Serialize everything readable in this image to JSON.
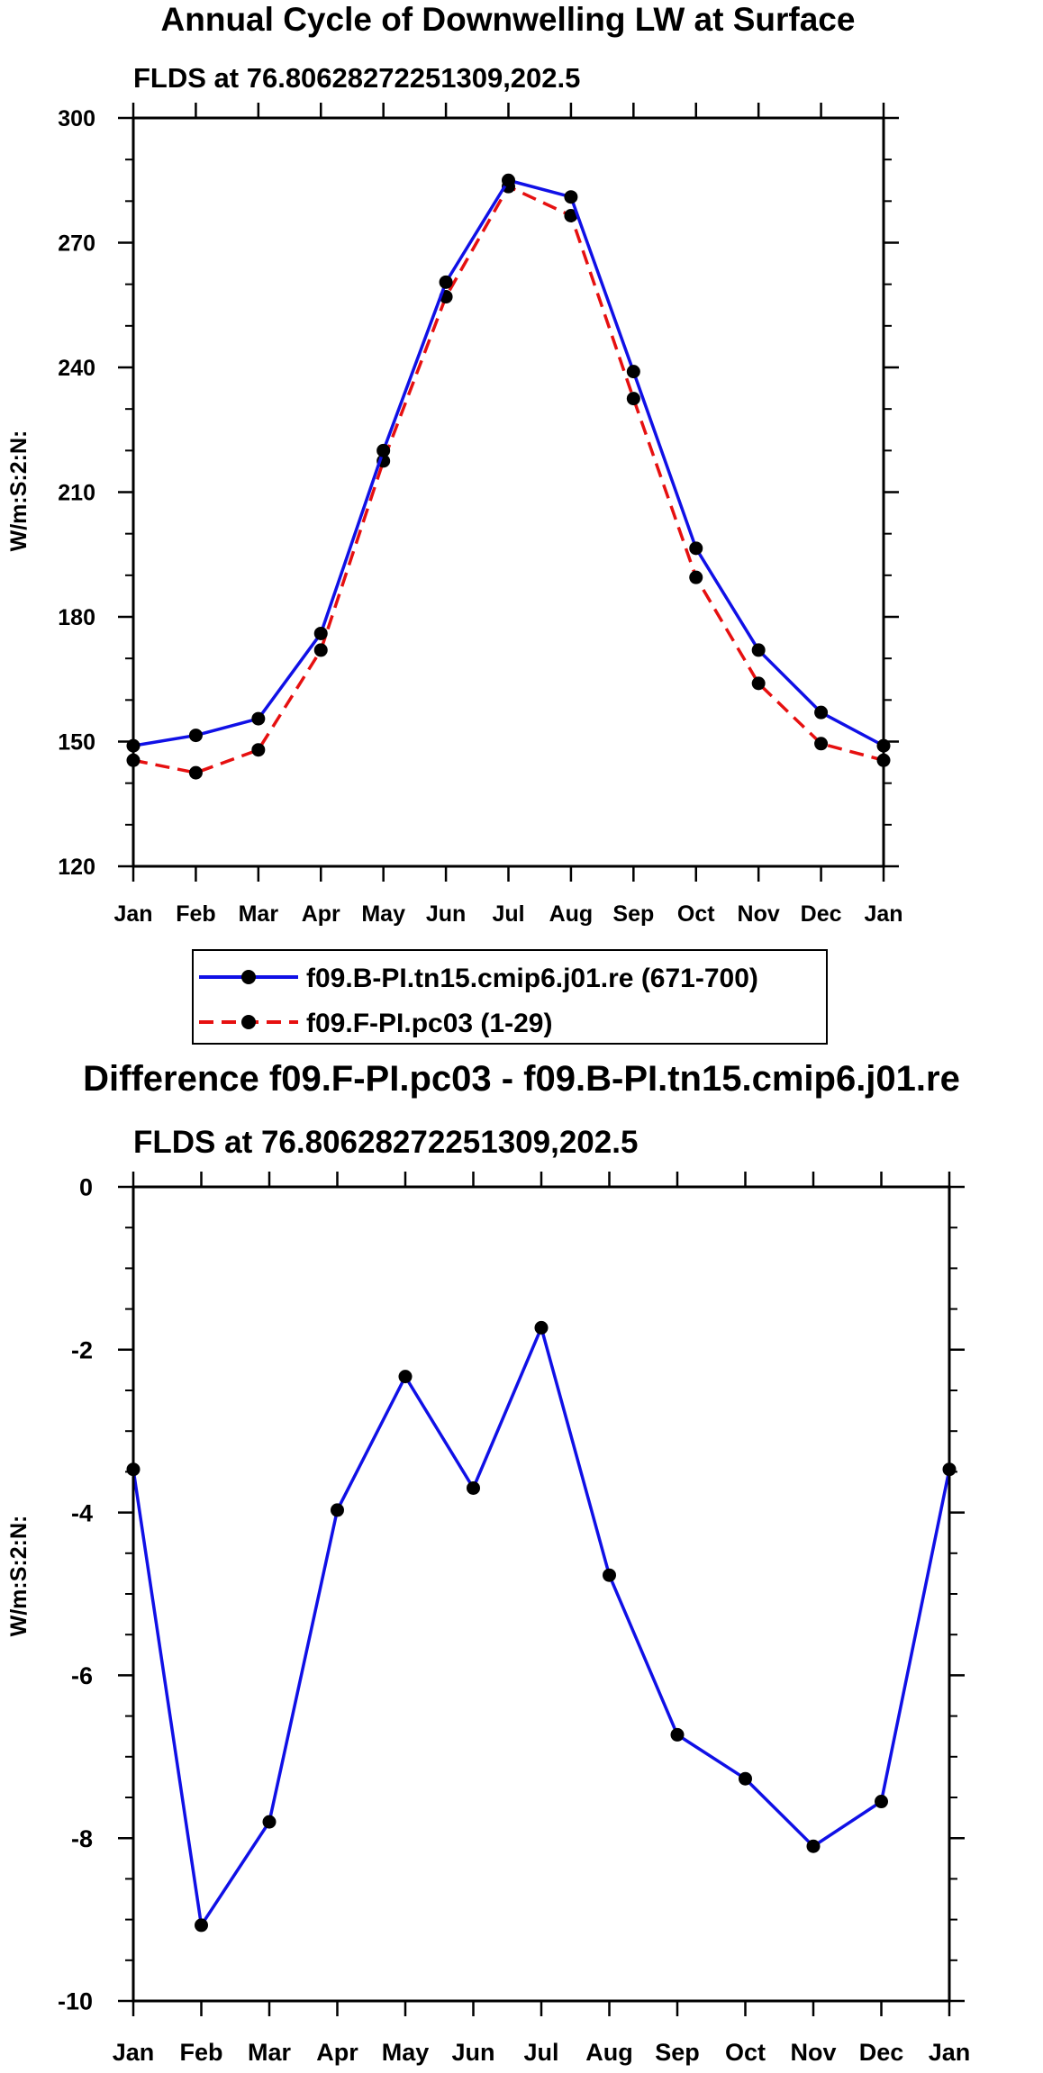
{
  "chart_data": [
    {
      "type": "line",
      "title": "Annual Cycle of Downwelling LW at Surface",
      "subtitle": "FLDS at 76.80628272251309,202.5",
      "xlabel": "",
      "ylabel": "W/m:S:2:N:",
      "categories": [
        "Jan",
        "Feb",
        "Mar",
        "Apr",
        "May",
        "Jun",
        "Jul",
        "Aug",
        "Sep",
        "Oct",
        "Nov",
        "Dec",
        "Jan"
      ],
      "ylim": [
        120,
        300
      ],
      "yticks": [
        120,
        150,
        180,
        210,
        240,
        270,
        300
      ],
      "yticks_label": [
        "120",
        "150",
        "180",
        "210",
        "240",
        "270",
        "300"
      ],
      "series": [
        {
          "name": "f09.B-PI.tn15.cmip6.j01.re (671-700)",
          "color": "#1010e6",
          "dash": "solid",
          "values": [
            149,
            151.5,
            155.5,
            176,
            220,
            260.5,
            285,
            281,
            239,
            196.5,
            172,
            157,
            149
          ]
        },
        {
          "name": "f09.F-PI.pc03 (1-29)",
          "color": "#e61010",
          "dash": "dashed",
          "values": [
            145.5,
            142.5,
            148,
            172,
            217.5,
            257,
            283.5,
            276.5,
            232.5,
            189.5,
            164,
            149.5,
            145.5
          ]
        }
      ],
      "legend": [
        "f09.B-PI.tn15.cmip6.j01.re (671-700)",
        "f09.F-PI.pc03 (1-29)"
      ]
    },
    {
      "type": "line",
      "title": "Difference f09.F-PI.pc03 - f09.B-PI.tn15.cmip6.j01.re",
      "subtitle": "FLDS at 76.80628272251309,202.5",
      "xlabel": "",
      "ylabel": "W/m:S:2:N:",
      "categories": [
        "Jan",
        "Feb",
        "Mar",
        "Apr",
        "May",
        "Jun",
        "Jul",
        "Aug",
        "Sep",
        "Oct",
        "Nov",
        "Dec",
        "Jan"
      ],
      "ylim": [
        -10,
        0
      ],
      "yticks": [
        -10,
        -8,
        -6,
        -4,
        -2,
        0
      ],
      "yticks_label": [
        "-10",
        "-8",
        "-6",
        "-4",
        "-2",
        "0"
      ],
      "series": [
        {
          "name": "difference",
          "color": "#1010e6",
          "dash": "solid",
          "values": [
            -3.47,
            -9.07,
            -7.8,
            -3.97,
            -2.33,
            -3.7,
            -1.73,
            -4.77,
            -6.73,
            -7.27,
            -8.1,
            -7.55,
            -3.47
          ]
        }
      ]
    }
  ]
}
